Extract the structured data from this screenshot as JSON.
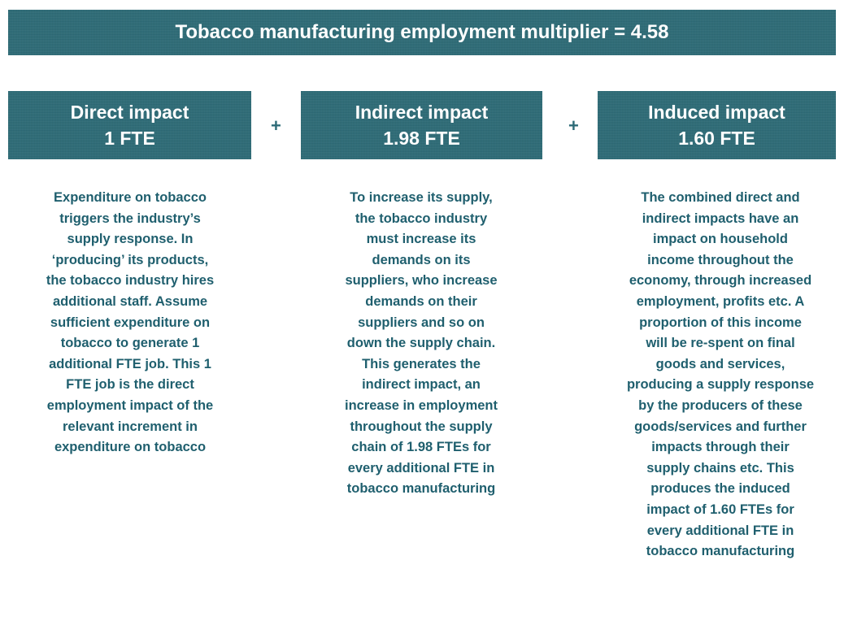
{
  "banner": "Tobacco manufacturing employment multiplier = 4.58",
  "plus": "+",
  "columns": [
    {
      "title": "Direct impact",
      "value": "1 FTE",
      "lines": [
        "Expenditure on tobacco",
        "triggers the industry’s",
        "supply response. In",
        "‘producing’ its products,",
        "the tobacco industry hires",
        "additional staff. Assume",
        "sufficient expenditure on",
        "tobacco to generate 1",
        "additional FTE job. This 1",
        "FTE job is the direct",
        "employment impact of the",
        "relevant increment in",
        "expenditure on tobacco"
      ]
    },
    {
      "title": "Indirect impact",
      "value": "1.98 FTE",
      "lines": [
        "To increase its supply,",
        "the tobacco industry",
        "must increase its",
        "demands on its",
        "suppliers, who increase",
        "demands on their",
        "suppliers and so on",
        "down the supply chain.",
        "This generates the",
        "indirect impact, an",
        "increase in employment",
        "throughout the supply",
        "chain of 1.98 FTEs for",
        "every additional FTE in",
        "tobacco manufacturing"
      ]
    },
    {
      "title": "Induced impact",
      "value": "1.60 FTE",
      "lines": [
        "The combined direct and",
        "indirect impacts have an",
        "impact on household",
        "income throughout the",
        "economy, through increased",
        "employment, profits etc.  A",
        "proportion of this income",
        "will be re-spent on final",
        "goods and services,",
        "producing a supply response",
        "by the producers of these",
        "goods/services and further",
        "impacts through their",
        "supply chains etc.  This",
        "produces the induced",
        "impact of 1.60 FTEs for",
        "every additional FTE in",
        "tobacco manufacturing"
      ]
    }
  ]
}
